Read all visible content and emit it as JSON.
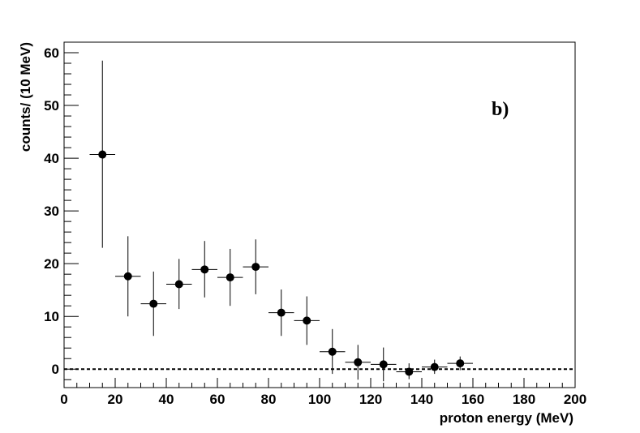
{
  "chart_data": {
    "type": "scatter",
    "xlabel": "proton energy (MeV)",
    "ylabel": "counts/ (10 MeV)",
    "xlim": [
      0,
      200
    ],
    "ylim": [
      -3.5,
      62
    ],
    "x_ticks": [
      0,
      20,
      40,
      60,
      80,
      100,
      120,
      140,
      160,
      180,
      200
    ],
    "y_ticks": [
      0,
      10,
      20,
      30,
      40,
      50,
      60
    ],
    "annotation": "b)",
    "reference_line": {
      "y": 0,
      "style": "dashed"
    },
    "grid": false,
    "points": [
      {
        "x": 15,
        "y": 40.7,
        "xerr": 5,
        "ylo": 23.0,
        "yhi": 58.5
      },
      {
        "x": 25,
        "y": 17.6,
        "xerr": 5,
        "ylo": 10.0,
        "yhi": 25.2
      },
      {
        "x": 35,
        "y": 12.4,
        "xerr": 5,
        "ylo": 6.3,
        "yhi": 18.5
      },
      {
        "x": 45,
        "y": 16.1,
        "xerr": 5,
        "ylo": 11.4,
        "yhi": 20.9
      },
      {
        "x": 55,
        "y": 18.9,
        "xerr": 5,
        "ylo": 13.6,
        "yhi": 24.3
      },
      {
        "x": 65,
        "y": 17.4,
        "xerr": 5,
        "ylo": 12.0,
        "yhi": 22.8
      },
      {
        "x": 75,
        "y": 19.4,
        "xerr": 5,
        "ylo": 14.2,
        "yhi": 24.6
      },
      {
        "x": 85,
        "y": 10.7,
        "xerr": 5,
        "ylo": 6.3,
        "yhi": 15.1
      },
      {
        "x": 95,
        "y": 9.2,
        "xerr": 5,
        "ylo": 4.6,
        "yhi": 13.8
      },
      {
        "x": 105,
        "y": 3.3,
        "xerr": 5,
        "ylo": -0.9,
        "yhi": 7.6
      },
      {
        "x": 115,
        "y": 1.3,
        "xerr": 5,
        "ylo": -2.0,
        "yhi": 4.6
      },
      {
        "x": 125,
        "y": 0.9,
        "xerr": 5,
        "ylo": -2.3,
        "yhi": 4.1
      },
      {
        "x": 135,
        "y": -0.5,
        "xerr": 5,
        "ylo": -1.9,
        "yhi": 1.1
      },
      {
        "x": 145,
        "y": 0.4,
        "xerr": 5,
        "ylo": -0.9,
        "yhi": 1.8
      },
      {
        "x": 155,
        "y": 1.1,
        "xerr": 5,
        "ylo": -0.2,
        "yhi": 2.4
      }
    ]
  }
}
